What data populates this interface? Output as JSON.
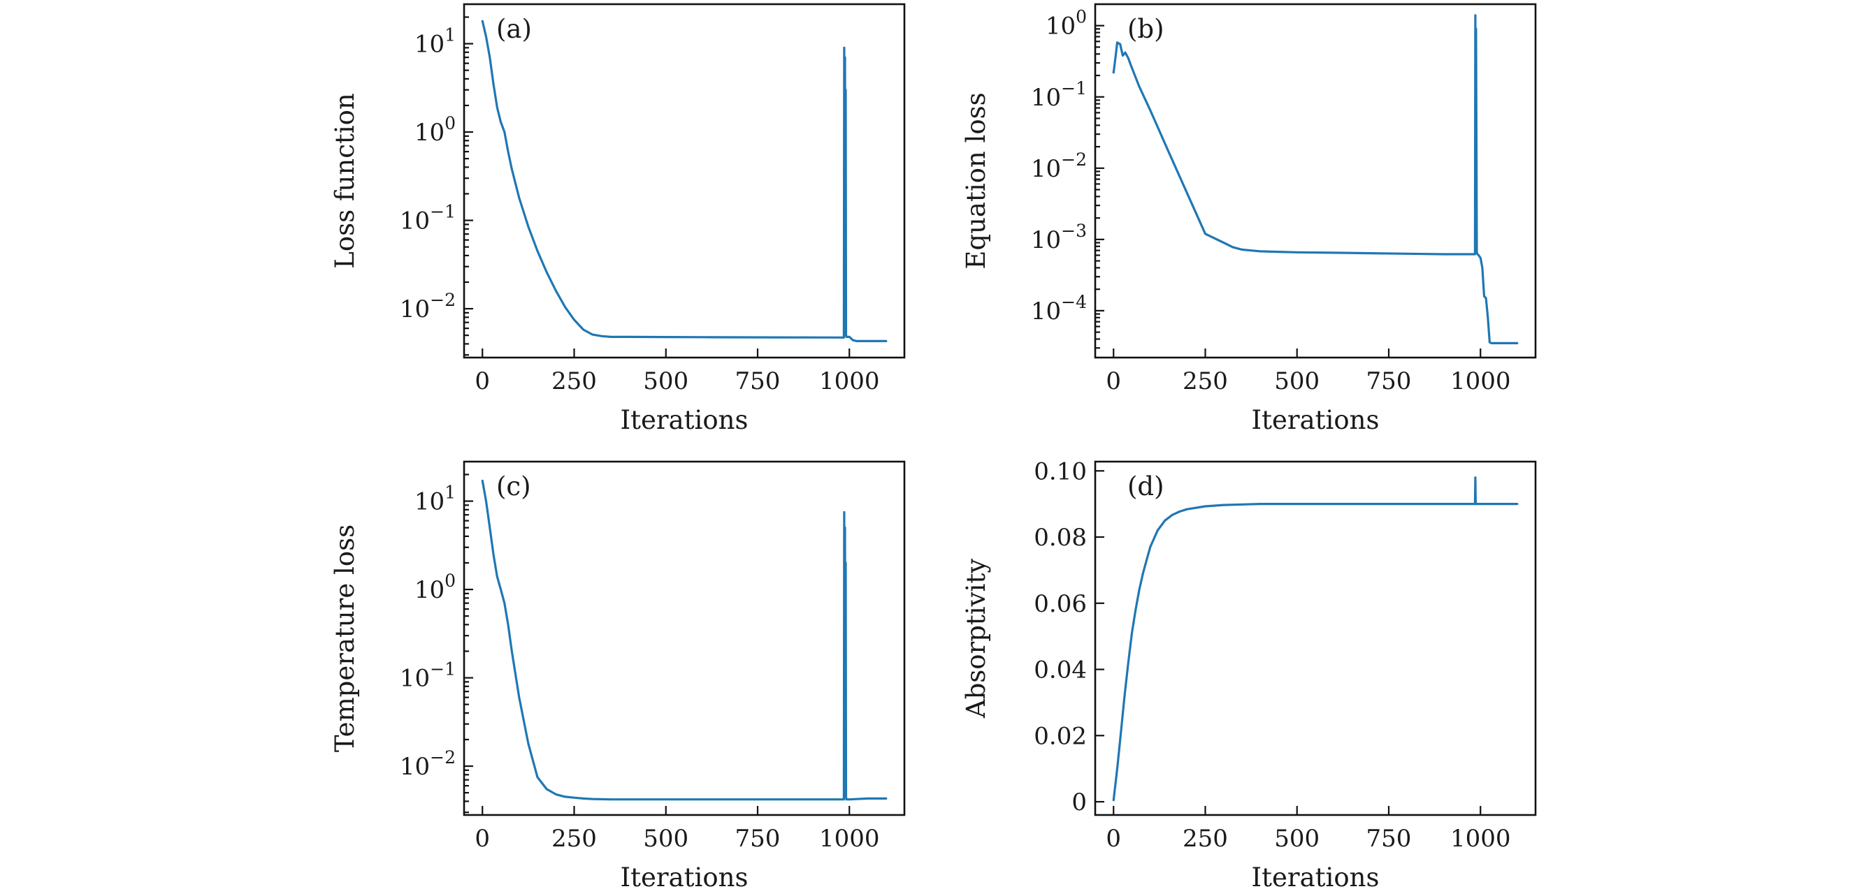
{
  "figure": {
    "series_color": "#1f77b4"
  },
  "chart_data": [
    {
      "id": "a",
      "type": "line",
      "panel_label": "(a)",
      "xlabel": "Iterations",
      "ylabel": "Loss function",
      "yscale": "log",
      "xlim": [
        -50,
        1150
      ],
      "ylim": [
        0.0028,
        28
      ],
      "xticks": [
        {
          "v": 0,
          "label": "0"
        },
        {
          "v": 250,
          "label": "250"
        },
        {
          "v": 500,
          "label": "500"
        },
        {
          "v": 750,
          "label": "750"
        },
        {
          "v": 1000,
          "label": "1000"
        }
      ],
      "yticks": [
        {
          "v": 0.01,
          "base": "10",
          "exp": "−2"
        },
        {
          "v": 0.1,
          "base": "10",
          "exp": "−1"
        },
        {
          "v": 1,
          "base": "10",
          "exp": "0"
        },
        {
          "v": 10,
          "base": "10",
          "exp": "1"
        }
      ],
      "series": [
        {
          "name": "loss",
          "x": [
            0,
            10,
            20,
            30,
            40,
            50,
            60,
            70,
            80,
            100,
            125,
            150,
            175,
            200,
            225,
            250,
            275,
            300,
            325,
            350,
            400,
            500,
            600,
            700,
            800,
            900,
            985,
            986,
            987,
            988,
            989,
            990,
            991,
            992,
            1000,
            1010,
            1020,
            1050,
            1100
          ],
          "y": [
            18,
            12,
            7,
            3.5,
            1.9,
            1.3,
            1.0,
            0.6,
            0.38,
            0.18,
            0.085,
            0.045,
            0.026,
            0.016,
            0.0105,
            0.0075,
            0.0058,
            0.0051,
            0.0049,
            0.0048,
            0.0048,
            0.00478,
            0.00476,
            0.00475,
            0.00474,
            0.00473,
            0.00472,
            9.0,
            0.5,
            7.0,
            0.02,
            3.0,
            0.005,
            0.0048,
            0.0048,
            0.0044,
            0.0043,
            0.0043,
            0.0043
          ]
        }
      ]
    },
    {
      "id": "b",
      "type": "line",
      "panel_label": "(b)",
      "xlabel": "Iterations",
      "ylabel": "Equation loss",
      "yscale": "log",
      "xlim": [
        -50,
        1150
      ],
      "ylim": [
        2.2e-05,
        2.0
      ],
      "xticks": [
        {
          "v": 0,
          "label": "0"
        },
        {
          "v": 250,
          "label": "250"
        },
        {
          "v": 500,
          "label": "500"
        },
        {
          "v": 750,
          "label": "750"
        },
        {
          "v": 1000,
          "label": "1000"
        }
      ],
      "yticks": [
        {
          "v": 0.0001,
          "base": "10",
          "exp": "−4"
        },
        {
          "v": 0.001,
          "base": "10",
          "exp": "−3"
        },
        {
          "v": 0.01,
          "base": "10",
          "exp": "−2"
        },
        {
          "v": 0.1,
          "base": "10",
          "exp": "−1"
        },
        {
          "v": 1,
          "base": "10",
          "exp": "0"
        }
      ],
      "series": [
        {
          "name": "equation loss",
          "x": [
            0,
            5,
            10,
            18,
            25,
            32,
            40,
            47,
            55,
            70,
            100,
            150,
            200,
            250,
            300,
            325,
            350,
            375,
            400,
            450,
            500,
            600,
            700,
            800,
            900,
            985,
            986,
            987,
            988,
            990,
            992,
            995,
            1000,
            1005,
            1010,
            1015,
            1020,
            1025,
            1030,
            1050,
            1100
          ],
          "y": [
            0.22,
            0.35,
            0.58,
            0.55,
            0.38,
            0.42,
            0.35,
            0.28,
            0.22,
            0.14,
            0.065,
            0.017,
            0.0045,
            0.0012,
            0.0009,
            0.00078,
            0.00072,
            0.0007,
            0.00068,
            0.00067,
            0.00066,
            0.00065,
            0.00064,
            0.00063,
            0.00062,
            0.00062,
            1.4,
            0.0008,
            0.9,
            0.00065,
            0.00062,
            0.0006,
            0.00055,
            0.0004,
            0.00016,
            0.00015,
            8e-05,
            3.6e-05,
            3.5e-05,
            3.5e-05,
            3.5e-05
          ]
        }
      ]
    },
    {
      "id": "c",
      "type": "line",
      "panel_label": "(c)",
      "xlabel": "Iterations",
      "ylabel": "Temperature loss",
      "yscale": "log",
      "xlim": [
        -50,
        1150
      ],
      "ylim": [
        0.0028,
        28
      ],
      "xticks": [
        {
          "v": 0,
          "label": "0"
        },
        {
          "v": 250,
          "label": "250"
        },
        {
          "v": 500,
          "label": "500"
        },
        {
          "v": 750,
          "label": "750"
        },
        {
          "v": 1000,
          "label": "1000"
        }
      ],
      "yticks": [
        {
          "v": 0.01,
          "base": "10",
          "exp": "−2"
        },
        {
          "v": 0.1,
          "base": "10",
          "exp": "−1"
        },
        {
          "v": 1,
          "base": "10",
          "exp": "0"
        },
        {
          "v": 10,
          "base": "10",
          "exp": "1"
        }
      ],
      "series": [
        {
          "name": "temperature loss",
          "x": [
            0,
            10,
            20,
            30,
            40,
            50,
            60,
            70,
            80,
            100,
            125,
            150,
            175,
            200,
            225,
            250,
            275,
            300,
            350,
            400,
            500,
            600,
            700,
            800,
            900,
            985,
            986,
            987,
            988,
            989,
            990,
            991,
            992,
            1000,
            1050,
            1100
          ],
          "y": [
            17,
            10,
            5,
            2.5,
            1.4,
            1.0,
            0.7,
            0.4,
            0.2,
            0.06,
            0.018,
            0.0075,
            0.0055,
            0.0048,
            0.0045,
            0.0044,
            0.0043,
            0.00425,
            0.0042,
            0.0042,
            0.0042,
            0.0042,
            0.0042,
            0.0042,
            0.0042,
            0.0042,
            7.5,
            0.3,
            5.0,
            0.01,
            2.0,
            0.0045,
            0.0042,
            0.0042,
            0.0043,
            0.0043
          ]
        }
      ]
    },
    {
      "id": "d",
      "type": "line",
      "panel_label": "(d)",
      "xlabel": "Iterations",
      "ylabel": "Absorptivity",
      "yscale": "linear",
      "xlim": [
        -50,
        1150
      ],
      "ylim": [
        -0.004,
        0.1028
      ],
      "xticks": [
        {
          "v": 0,
          "label": "0"
        },
        {
          "v": 250,
          "label": "250"
        },
        {
          "v": 500,
          "label": "500"
        },
        {
          "v": 750,
          "label": "750"
        },
        {
          "v": 1000,
          "label": "1000"
        }
      ],
      "yticks": [
        {
          "v": 0,
          "label": "0"
        },
        {
          "v": 0.02,
          "label": "0.02"
        },
        {
          "v": 0.04,
          "label": "0.04"
        },
        {
          "v": 0.06,
          "label": "0.06"
        },
        {
          "v": 0.08,
          "label": "0.08"
        },
        {
          "v": 0.1,
          "label": "0.10"
        }
      ],
      "series": [
        {
          "name": "absorptivity",
          "x": [
            0,
            10,
            20,
            30,
            40,
            50,
            60,
            70,
            80,
            90,
            100,
            120,
            140,
            160,
            180,
            200,
            250,
            300,
            400,
            500,
            600,
            700,
            800,
            900,
            985,
            986,
            987,
            990,
            1000,
            1050,
            1100
          ],
          "y": [
            0.0005,
            0.01,
            0.021,
            0.032,
            0.042,
            0.051,
            0.058,
            0.064,
            0.069,
            0.073,
            0.077,
            0.082,
            0.085,
            0.0867,
            0.0877,
            0.0884,
            0.0893,
            0.0897,
            0.09,
            0.09,
            0.09,
            0.09,
            0.09,
            0.09,
            0.09,
            0.098,
            0.09,
            0.09,
            0.09,
            0.09,
            0.09
          ]
        }
      ]
    }
  ]
}
